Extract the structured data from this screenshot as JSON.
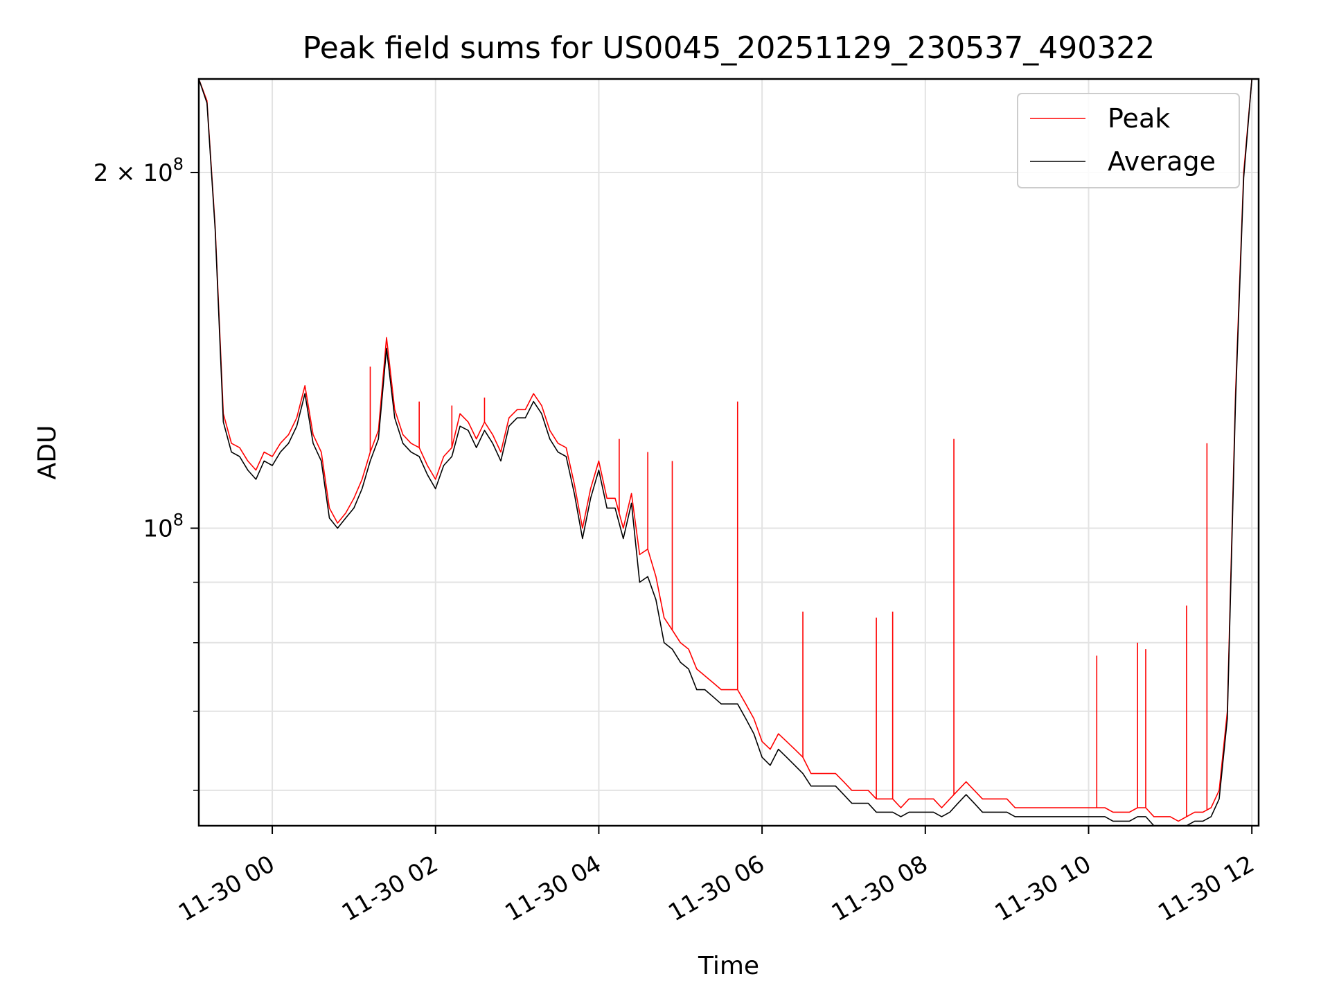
{
  "chart_data": {
    "type": "line",
    "title": "Peak field sums for US0045_20251129_230537_490322",
    "xlabel": "Time",
    "ylabel": "ADU",
    "yscale": "log",
    "ylim": [
      56000000,
      240000000
    ],
    "xlim": [
      "2025-11-29 23:06",
      "2025-11-30 12:05"
    ],
    "grid": true,
    "legend_position": "upper-right",
    "x_ticks": [
      {
        "value": "2025-11-30 00:00",
        "label": "11-30 00"
      },
      {
        "value": "2025-11-30 02:00",
        "label": "11-30 02"
      },
      {
        "value": "2025-11-30 04:00",
        "label": "11-30 04"
      },
      {
        "value": "2025-11-30 06:00",
        "label": "11-30 06"
      },
      {
        "value": "2025-11-30 08:00",
        "label": "11-30 08"
      },
      {
        "value": "2025-11-30 10:00",
        "label": "11-30 10"
      },
      {
        "value": "2025-11-30 12:00",
        "label": "11-30 12"
      }
    ],
    "y_major_ticks": [
      {
        "value": 100000000,
        "label_base": "10",
        "label_exp": "8",
        "label_coef": ""
      },
      {
        "value": 200000000,
        "label_base": "10",
        "label_exp": "8",
        "label_coef": "2 × "
      }
    ],
    "y_minor_ticks": [
      60000000,
      70000000,
      80000000,
      90000000
    ],
    "series": [
      {
        "name": "Peak",
        "color": "#ff0000",
        "x": [
          "2025-11-29 23:06",
          "2025-11-29 23:12",
          "2025-11-29 23:18",
          "2025-11-29 23:24",
          "2025-11-29 23:30",
          "2025-11-29 23:36",
          "2025-11-29 23:42",
          "2025-11-29 23:48",
          "2025-11-29 23:54",
          "2025-11-30 00:00",
          "2025-11-30 00:06",
          "2025-11-30 00:12",
          "2025-11-30 00:18",
          "2025-11-30 00:24",
          "2025-11-30 00:30",
          "2025-11-30 00:36",
          "2025-11-30 00:42",
          "2025-11-30 00:48",
          "2025-11-30 00:54",
          "2025-11-30 01:00",
          "2025-11-30 01:06",
          "2025-11-30 01:12",
          "2025-11-30 01:18",
          "2025-11-30 01:24",
          "2025-11-30 01:30",
          "2025-11-30 01:36",
          "2025-11-30 01:42",
          "2025-11-30 01:48",
          "2025-11-30 01:54",
          "2025-11-30 02:00",
          "2025-11-30 02:06",
          "2025-11-30 02:12",
          "2025-11-30 02:18",
          "2025-11-30 02:24",
          "2025-11-30 02:30",
          "2025-11-30 02:36",
          "2025-11-30 02:42",
          "2025-11-30 02:48",
          "2025-11-30 02:54",
          "2025-11-30 03:00",
          "2025-11-30 03:06",
          "2025-11-30 03:12",
          "2025-11-30 03:18",
          "2025-11-30 03:24",
          "2025-11-30 03:30",
          "2025-11-30 03:36",
          "2025-11-30 03:42",
          "2025-11-30 03:48",
          "2025-11-30 03:54",
          "2025-11-30 04:00",
          "2025-11-30 04:06",
          "2025-11-30 04:12",
          "2025-11-30 04:18",
          "2025-11-30 04:24",
          "2025-11-30 04:30",
          "2025-11-30 04:36",
          "2025-11-30 04:42",
          "2025-11-30 04:48",
          "2025-11-30 04:54",
          "2025-11-30 05:00",
          "2025-11-30 05:06",
          "2025-11-30 05:12",
          "2025-11-30 05:18",
          "2025-11-30 05:24",
          "2025-11-30 05:30",
          "2025-11-30 05:36",
          "2025-11-30 05:42",
          "2025-11-30 05:48",
          "2025-11-30 05:54",
          "2025-11-30 06:00",
          "2025-11-30 06:06",
          "2025-11-30 06:12",
          "2025-11-30 06:18",
          "2025-11-30 06:24",
          "2025-11-30 06:30",
          "2025-11-30 06:36",
          "2025-11-30 06:42",
          "2025-11-30 06:48",
          "2025-11-30 06:54",
          "2025-11-30 07:00",
          "2025-11-30 07:06",
          "2025-11-30 07:12",
          "2025-11-30 07:18",
          "2025-11-30 07:24",
          "2025-11-30 07:30",
          "2025-11-30 07:36",
          "2025-11-30 07:42",
          "2025-11-30 07:48",
          "2025-11-30 07:54",
          "2025-11-30 08:00",
          "2025-11-30 08:06",
          "2025-11-30 08:12",
          "2025-11-30 08:18",
          "2025-11-30 08:24",
          "2025-11-30 08:30",
          "2025-11-30 08:36",
          "2025-11-30 08:42",
          "2025-11-30 08:48",
          "2025-11-30 08:54",
          "2025-11-30 09:00",
          "2025-11-30 09:06",
          "2025-11-30 09:12",
          "2025-11-30 09:18",
          "2025-11-30 09:24",
          "2025-11-30 09:30",
          "2025-11-30 09:36",
          "2025-11-30 09:42",
          "2025-11-30 09:48",
          "2025-11-30 09:54",
          "2025-11-30 10:00",
          "2025-11-30 10:06",
          "2025-11-30 10:12",
          "2025-11-30 10:18",
          "2025-11-30 10:24",
          "2025-11-30 10:30",
          "2025-11-30 10:36",
          "2025-11-30 10:42",
          "2025-11-30 10:48",
          "2025-11-30 10:54",
          "2025-11-30 11:00",
          "2025-11-30 11:06",
          "2025-11-30 11:12",
          "2025-11-30 11:18",
          "2025-11-30 11:24",
          "2025-11-30 11:30",
          "2025-11-30 11:36",
          "2025-11-30 11:42",
          "2025-11-30 11:48",
          "2025-11-30 11:54",
          "2025-11-30 12:00",
          "2025-11-30 12:05"
        ],
        "values": [
          240000000,
          230000000,
          180000000,
          125000000,
          118000000,
          117000000,
          114000000,
          112000000,
          116000000,
          115000000,
          118000000,
          120000000,
          124000000,
          132000000,
          120000000,
          116000000,
          104000000,
          101000000,
          103000000,
          106000000,
          110000000,
          116000000,
          121000000,
          145000000,
          126000000,
          120000000,
          118000000,
          117000000,
          113000000,
          110000000,
          115000000,
          117000000,
          125000000,
          123000000,
          119000000,
          123000000,
          120000000,
          116000000,
          124000000,
          126000000,
          126000000,
          130000000,
          127000000,
          121000000,
          118000000,
          117000000,
          109000000,
          100000000,
          108000000,
          114000000,
          106000000,
          106000000,
          100000000,
          107000000,
          95000000,
          96000000,
          91000000,
          84000000,
          82000000,
          80000000,
          79000000,
          76000000,
          75000000,
          74000000,
          73000000,
          73000000,
          73000000,
          71000000,
          69000000,
          66000000,
          65000000,
          67000000,
          66000000,
          65000000,
          64000000,
          62000000,
          62000000,
          62000000,
          62000000,
          61000000,
          60000000,
          60000000,
          60000000,
          59000000,
          59000000,
          59000000,
          58000000,
          59000000,
          59000000,
          59000000,
          59000000,
          58000000,
          59000000,
          60000000,
          61000000,
          60000000,
          59000000,
          59000000,
          59000000,
          59000000,
          58000000,
          58000000,
          58000000,
          58000000,
          58000000,
          58000000,
          58000000,
          58000000,
          58000000,
          58000000,
          58000000,
          58000000,
          57500000,
          57500000,
          57500000,
          58000000,
          58000000,
          57000000,
          57000000,
          57000000,
          56500000,
          57000000,
          57500000,
          57500000,
          58000000,
          60000000,
          70000000,
          130000000,
          200000000,
          240000000,
          240000000
        ],
        "spikes": [
          {
            "x": "2025-11-30 01:12",
            "value": 137000000
          },
          {
            "x": "2025-11-30 01:48",
            "value": 128000000
          },
          {
            "x": "2025-11-30 02:12",
            "value": 127000000
          },
          {
            "x": "2025-11-30 02:36",
            "value": 129000000
          },
          {
            "x": "2025-11-30 04:15",
            "value": 119000000
          },
          {
            "x": "2025-11-30 04:36",
            "value": 116000000
          },
          {
            "x": "2025-11-30 04:54",
            "value": 114000000
          },
          {
            "x": "2025-11-30 05:42",
            "value": 128000000
          },
          {
            "x": "2025-11-30 06:30",
            "value": 85000000
          },
          {
            "x": "2025-11-30 07:24",
            "value": 84000000
          },
          {
            "x": "2025-11-30 07:36",
            "value": 85000000
          },
          {
            "x": "2025-11-30 08:21",
            "value": 119000000
          },
          {
            "x": "2025-11-30 10:06",
            "value": 78000000
          },
          {
            "x": "2025-11-30 10:36",
            "value": 80000000
          },
          {
            "x": "2025-11-30 10:42",
            "value": 79000000
          },
          {
            "x": "2025-11-30 11:12",
            "value": 86000000
          },
          {
            "x": "2025-11-30 11:27",
            "value": 118000000
          }
        ]
      },
      {
        "name": "Average",
        "color": "#000000",
        "x_same_as": "Peak",
        "values": [
          240000000,
          229000000,
          179000000,
          123000000,
          116000000,
          115000000,
          112000000,
          110000000,
          114000000,
          113000000,
          116000000,
          118000000,
          122000000,
          130000000,
          118000000,
          114000000,
          102000000,
          100000000,
          102000000,
          104000000,
          108000000,
          114000000,
          119000000,
          142000000,
          124000000,
          118000000,
          116000000,
          115000000,
          111000000,
          108000000,
          113000000,
          115000000,
          122000000,
          121000000,
          117000000,
          121000000,
          118000000,
          114000000,
          122000000,
          124000000,
          124000000,
          128000000,
          125000000,
          119000000,
          116000000,
          115000000,
          107000000,
          98000000,
          106000000,
          112000000,
          104000000,
          104000000,
          98000000,
          105000000,
          90000000,
          91000000,
          87000000,
          80000000,
          79000000,
          77000000,
          76000000,
          73000000,
          73000000,
          72000000,
          71000000,
          71000000,
          71000000,
          69000000,
          67000000,
          64000000,
          63000000,
          65000000,
          64000000,
          63000000,
          62000000,
          60500000,
          60500000,
          60500000,
          60500000,
          59500000,
          58500000,
          58500000,
          58500000,
          57500000,
          57500000,
          57500000,
          57000000,
          57500000,
          57500000,
          57500000,
          57500000,
          57000000,
          57500000,
          58500000,
          59500000,
          58500000,
          57500000,
          57500000,
          57500000,
          57500000,
          57000000,
          57000000,
          57000000,
          57000000,
          57000000,
          57000000,
          57000000,
          57000000,
          57000000,
          57000000,
          57000000,
          57000000,
          56500000,
          56500000,
          56500000,
          57000000,
          57000000,
          56000000,
          56000000,
          56000000,
          55500000,
          56000000,
          56500000,
          56500000,
          57000000,
          59000000,
          69000000,
          128000000,
          198000000,
          240000000,
          240000000
        ]
      }
    ]
  }
}
